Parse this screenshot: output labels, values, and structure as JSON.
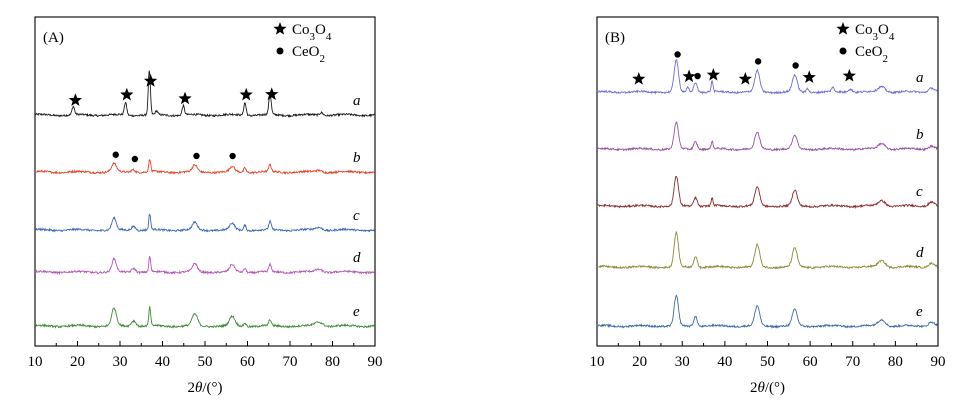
{
  "chart_data": [
    {
      "type": "line",
      "panel_label": "(A)",
      "xlim": [
        10,
        90
      ],
      "x_ticks": [
        "10",
        "20",
        "30",
        "40",
        "50",
        "60",
        "70",
        "80",
        "90"
      ],
      "xlabel": "2θ/(°)",
      "legend": [
        {
          "symbol": "star",
          "text": "Co3O4"
        },
        {
          "symbol": "dot",
          "text": "CeO2"
        }
      ],
      "series": [
        {
          "name": "a",
          "color": "#1a1a1a",
          "base": 0.0,
          "peaks": [
            [
              19.0,
              0.35,
              0.4
            ],
            [
              31.3,
              0.55,
              0.4
            ],
            [
              36.9,
              1.9,
              0.35
            ],
            [
              38.6,
              0.15,
              0.4
            ],
            [
              44.9,
              0.4,
              0.4
            ],
            [
              59.4,
              0.55,
              0.4
            ],
            [
              65.3,
              0.9,
              0.4
            ],
            [
              77.4,
              0.12,
              0.6
            ]
          ],
          "markers": [
            {
              "x": 19.5,
              "type": "star"
            },
            {
              "x": 31.6,
              "type": "star"
            },
            {
              "x": 37.2,
              "type": "star"
            },
            {
              "x": 45.3,
              "type": "star"
            },
            {
              "x": 59.7,
              "type": "star"
            },
            {
              "x": 65.7,
              "type": "star"
            }
          ]
        },
        {
          "name": "b",
          "color": "#e0442a",
          "base": 0.0,
          "peaks": [
            [
              28.6,
              0.35,
              0.8
            ],
            [
              33.1,
              0.12,
              0.7
            ],
            [
              37.0,
              0.55,
              0.3
            ],
            [
              47.6,
              0.28,
              0.8
            ],
            [
              56.4,
              0.22,
              0.8
            ],
            [
              59.4,
              0.2,
              0.4
            ],
            [
              65.3,
              0.3,
              0.4
            ],
            [
              76.8,
              0.08,
              1.0
            ]
          ],
          "markers": [
            {
              "x": 29.0,
              "type": "dot"
            },
            {
              "x": 33.5,
              "type": "dot"
            },
            {
              "x": 48.0,
              "type": "dot"
            },
            {
              "x": 56.5,
              "type": "dot"
            }
          ]
        },
        {
          "name": "c",
          "color": "#3b67b8",
          "base": 0.0,
          "peaks": [
            [
              28.6,
              0.5,
              0.7
            ],
            [
              33.2,
              0.18,
              0.7
            ],
            [
              37.0,
              0.7,
              0.3
            ],
            [
              47.6,
              0.32,
              0.8
            ],
            [
              56.4,
              0.28,
              0.8
            ],
            [
              59.4,
              0.22,
              0.4
            ],
            [
              65.3,
              0.35,
              0.4
            ],
            [
              76.8,
              0.12,
              1.2
            ]
          ],
          "markers": []
        },
        {
          "name": "d",
          "color": "#b258b5",
          "base": 0.0,
          "peaks": [
            [
              28.6,
              0.55,
              0.7
            ],
            [
              33.2,
              0.18,
              0.7
            ],
            [
              37.0,
              0.65,
              0.3
            ],
            [
              47.6,
              0.35,
              0.8
            ],
            [
              56.4,
              0.3,
              0.8
            ],
            [
              59.4,
              0.18,
              0.4
            ],
            [
              65.3,
              0.3,
              0.4
            ],
            [
              76.8,
              0.12,
              1.2
            ]
          ],
          "markers": []
        },
        {
          "name": "e",
          "color": "#3f8a3a",
          "base": 0.0,
          "peaks": [
            [
              28.6,
              0.75,
              0.8
            ],
            [
              33.2,
              0.25,
              0.8
            ],
            [
              37.0,
              0.8,
              0.3
            ],
            [
              47.6,
              0.5,
              0.9
            ],
            [
              56.4,
              0.4,
              0.9
            ],
            [
              59.4,
              0.15,
              0.4
            ],
            [
              65.3,
              0.25,
              0.4
            ],
            [
              76.8,
              0.18,
              1.3
            ]
          ],
          "markers": []
        }
      ]
    },
    {
      "type": "line",
      "panel_label": "(B)",
      "xlim": [
        10,
        90
      ],
      "x_ticks": [
        "10",
        "20",
        "30",
        "40",
        "50",
        "60",
        "70",
        "80",
        "90"
      ],
      "xlabel": "2θ/(°)",
      "legend": [
        {
          "symbol": "star",
          "text": "Co3O4"
        },
        {
          "symbol": "dot",
          "text": "CeO2"
        }
      ],
      "series": [
        {
          "name": "a",
          "color": "#6b6fd0",
          "base": 0.0,
          "peaks": [
            [
              28.6,
              1.45,
              0.7
            ],
            [
              33.1,
              0.45,
              0.6
            ],
            [
              31.3,
              0.2,
              0.4
            ],
            [
              37.0,
              0.5,
              0.3
            ],
            [
              47.6,
              0.95,
              0.8
            ],
            [
              56.4,
              0.75,
              0.8
            ],
            [
              59.4,
              0.2,
              0.4
            ],
            [
              65.3,
              0.2,
              0.4
            ],
            [
              69.4,
              0.15,
              0.8
            ],
            [
              76.8,
              0.25,
              1.2
            ],
            [
              88.5,
              0.2,
              1.0
            ]
          ],
          "markers": [
            {
              "x": 19.8,
              "type": "star"
            },
            {
              "x": 28.9,
              "type": "dot"
            },
            {
              "x": 31.6,
              "type": "star"
            },
            {
              "x": 33.6,
              "type": "dot"
            },
            {
              "x": 37.3,
              "type": "star"
            },
            {
              "x": 44.8,
              "type": "star"
            },
            {
              "x": 47.8,
              "type": "dot"
            },
            {
              "x": 56.6,
              "type": "dot"
            },
            {
              "x": 59.8,
              "type": "star"
            },
            {
              "x": 69.2,
              "type": "star"
            }
          ]
        },
        {
          "name": "b",
          "color": "#9b4fa8",
          "base": 0.0,
          "peaks": [
            [
              28.6,
              1.2,
              0.7
            ],
            [
              33.1,
              0.35,
              0.6
            ],
            [
              37.0,
              0.35,
              0.3
            ],
            [
              47.6,
              0.75,
              0.8
            ],
            [
              56.4,
              0.6,
              0.8
            ],
            [
              76.8,
              0.25,
              1.2
            ],
            [
              88.5,
              0.15,
              1.0
            ]
          ],
          "markers": []
        },
        {
          "name": "c",
          "color": "#8a2a2a",
          "base": 0.0,
          "peaks": [
            [
              28.6,
              1.35,
              0.7
            ],
            [
              33.1,
              0.4,
              0.6
            ],
            [
              37.0,
              0.35,
              0.3
            ],
            [
              47.6,
              0.85,
              0.8
            ],
            [
              56.4,
              0.7,
              0.8
            ],
            [
              76.8,
              0.25,
              1.2
            ],
            [
              88.5,
              0.2,
              1.0
            ]
          ],
          "markers": []
        },
        {
          "name": "d",
          "color": "#8c8a3a",
          "base": 0.0,
          "peaks": [
            [
              28.6,
              1.55,
              0.7
            ],
            [
              33.1,
              0.5,
              0.6
            ],
            [
              47.6,
              1.0,
              0.8
            ],
            [
              56.4,
              0.85,
              0.8
            ],
            [
              76.8,
              0.3,
              1.2
            ],
            [
              88.5,
              0.2,
              1.0
            ]
          ],
          "markers": []
        },
        {
          "name": "e",
          "color": "#3d6aa8",
          "base": 0.0,
          "peaks": [
            [
              28.6,
              1.35,
              0.7
            ],
            [
              33.1,
              0.45,
              0.6
            ],
            [
              47.6,
              0.9,
              0.8
            ],
            [
              56.4,
              0.75,
              0.8
            ],
            [
              76.8,
              0.3,
              1.2
            ],
            [
              88.5,
              0.2,
              1.0
            ]
          ],
          "markers": []
        }
      ]
    }
  ]
}
